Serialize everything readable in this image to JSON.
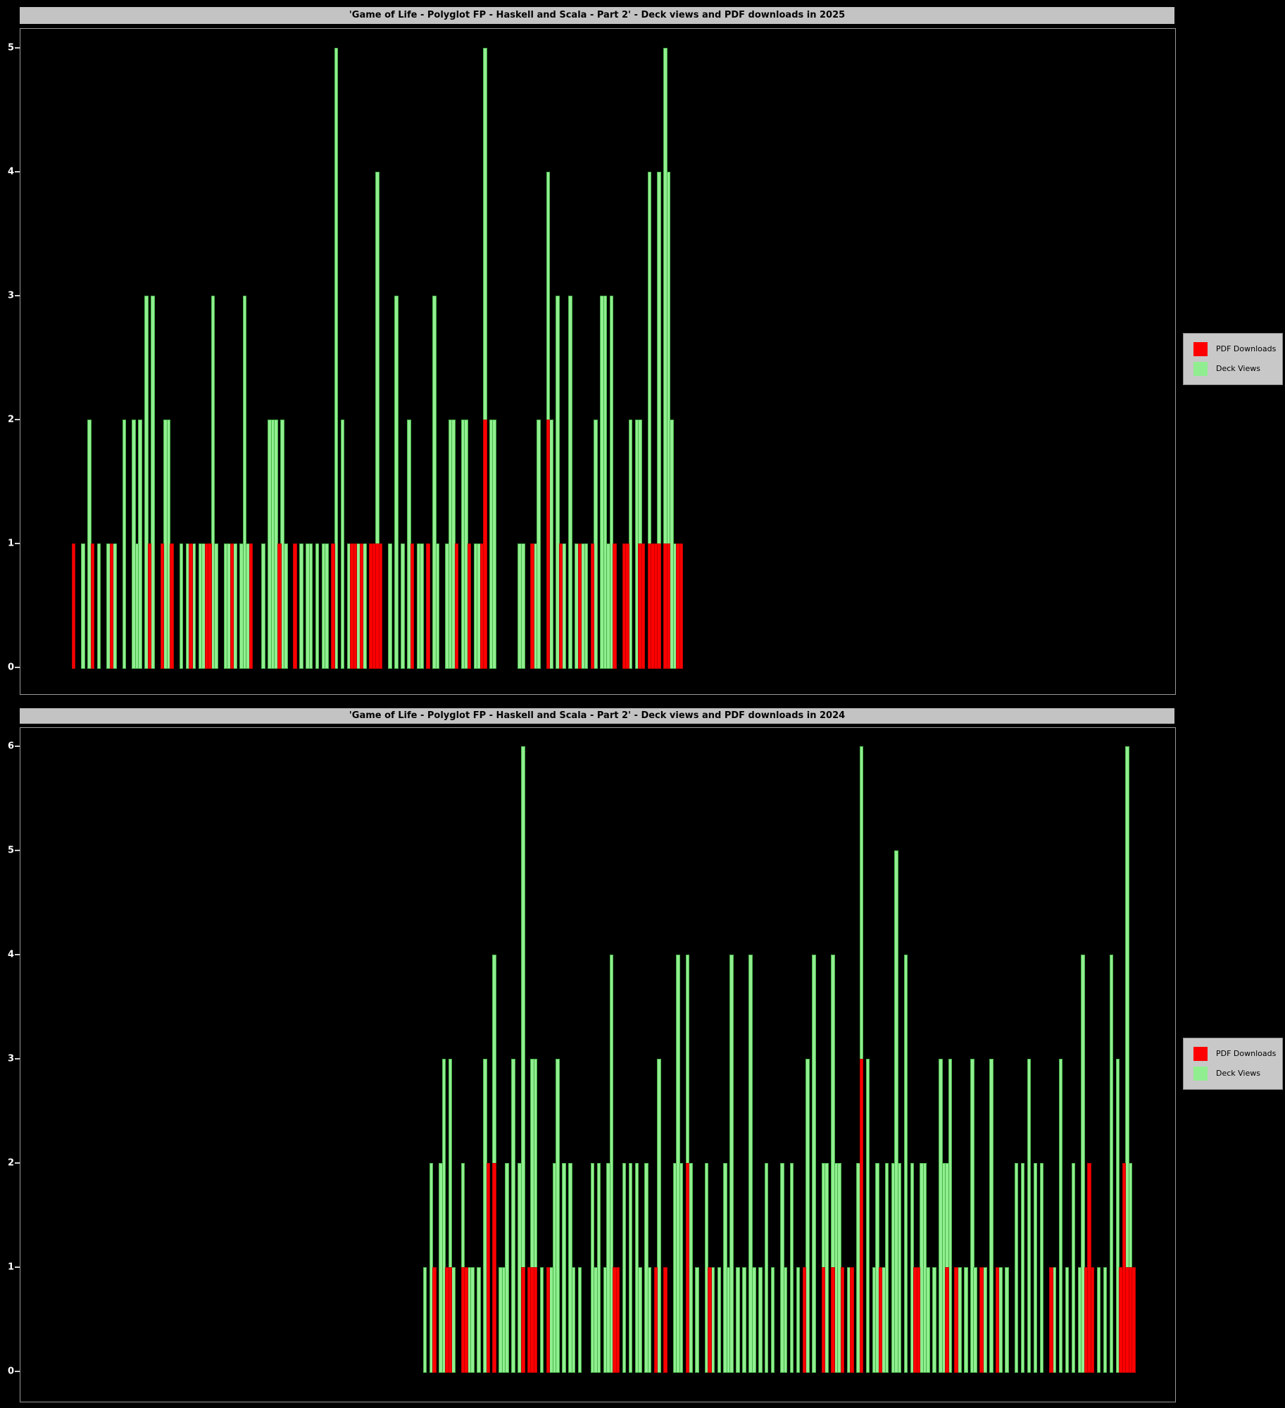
{
  "colors": {
    "background": "#000000",
    "title_bar": "#c3c3c3",
    "title_text": "#000000",
    "tick_text": "#ffffff",
    "axis_frame": "#9a9a9a",
    "pdf_downloads": "#ff0000",
    "deck_views": "#90ee90",
    "legend_bg": "#c8c8c8"
  },
  "chart_data": [
    {
      "type": "bar",
      "title": "'Game of Life - Polyglot FP - Haskell and Scala - Part 2' - Deck views and PDF downloads in 2025",
      "xlabel": "",
      "ylabel": "",
      "ylim": [
        0,
        5
      ],
      "y_ticks": [
        0,
        1,
        2,
        3,
        4,
        5
      ],
      "grid": false,
      "legend_position": "right-outside",
      "legend": [
        {
          "label": "PDF Downloads",
          "color": "#ff0000"
        },
        {
          "label": "Deck Views",
          "color": "#90ee90"
        }
      ],
      "x_unit": "day of year (Jan 1 = 0, full year shown, no x tick labels)",
      "bars_format": [
        "day_of_year",
        "deck_views",
        "pdf_downloads"
      ],
      "bars": [
        [
          16,
          0,
          1
        ],
        [
          19,
          1,
          0
        ],
        [
          21,
          2,
          0
        ],
        [
          22,
          0,
          1
        ],
        [
          24,
          1,
          0
        ],
        [
          27,
          1,
          0
        ],
        [
          28,
          0,
          1
        ],
        [
          29,
          1,
          0
        ],
        [
          32,
          2,
          0
        ],
        [
          35,
          2,
          0
        ],
        [
          36,
          1,
          0
        ],
        [
          37,
          2,
          0
        ],
        [
          39,
          3,
          0
        ],
        [
          40,
          1,
          1
        ],
        [
          41,
          3,
          0
        ],
        [
          44,
          1,
          1
        ],
        [
          45,
          2,
          0
        ],
        [
          46,
          2,
          0
        ],
        [
          47,
          0,
          1
        ],
        [
          50,
          1,
          0
        ],
        [
          52,
          1,
          0
        ],
        [
          53,
          0,
          1
        ],
        [
          54,
          1,
          0
        ],
        [
          56,
          1,
          0
        ],
        [
          57,
          1,
          0
        ],
        [
          58,
          0,
          1
        ],
        [
          59,
          0,
          1
        ],
        [
          60,
          3,
          0
        ],
        [
          61,
          1,
          0
        ],
        [
          64,
          1,
          0
        ],
        [
          65,
          1,
          0
        ],
        [
          66,
          0,
          1
        ],
        [
          67,
          1,
          0
        ],
        [
          69,
          1,
          0
        ],
        [
          70,
          3,
          0
        ],
        [
          71,
          1,
          0
        ],
        [
          72,
          0,
          1
        ],
        [
          76,
          1,
          0
        ],
        [
          78,
          2,
          0
        ],
        [
          79,
          2,
          0
        ],
        [
          80,
          2,
          0
        ],
        [
          81,
          0,
          1
        ],
        [
          82,
          2,
          0
        ],
        [
          83,
          1,
          0
        ],
        [
          86,
          0,
          1
        ],
        [
          88,
          1,
          0
        ],
        [
          90,
          1,
          0
        ],
        [
          91,
          1,
          0
        ],
        [
          93,
          1,
          0
        ],
        [
          95,
          1,
          0
        ],
        [
          96,
          1,
          0
        ],
        [
          98,
          1,
          1
        ],
        [
          99,
          5,
          0
        ],
        [
          101,
          2,
          0
        ],
        [
          103,
          1,
          0
        ],
        [
          104,
          0,
          1
        ],
        [
          105,
          0,
          1
        ],
        [
          106,
          1,
          0
        ],
        [
          107,
          0,
          1
        ],
        [
          108,
          1,
          0
        ],
        [
          110,
          0,
          1
        ],
        [
          111,
          0,
          1
        ],
        [
          112,
          4,
          1
        ],
        [
          113,
          0,
          1
        ],
        [
          116,
          1,
          0
        ],
        [
          118,
          3,
          0
        ],
        [
          120,
          1,
          0
        ],
        [
          122,
          2,
          0
        ],
        [
          123,
          0,
          1
        ],
        [
          125,
          1,
          0
        ],
        [
          126,
          1,
          0
        ],
        [
          128,
          1,
          1
        ],
        [
          130,
          3,
          0
        ],
        [
          131,
          1,
          0
        ],
        [
          134,
          1,
          0
        ],
        [
          135,
          2,
          0
        ],
        [
          136,
          2,
          0
        ],
        [
          137,
          0,
          1
        ],
        [
          139,
          2,
          0
        ],
        [
          140,
          2,
          0
        ],
        [
          141,
          1,
          1
        ],
        [
          143,
          1,
          0
        ],
        [
          144,
          1,
          0
        ],
        [
          145,
          1,
          1
        ],
        [
          146,
          5,
          2
        ],
        [
          148,
          2,
          0
        ],
        [
          149,
          2,
          0
        ],
        [
          157,
          1,
          0
        ],
        [
          158,
          1,
          0
        ],
        [
          161,
          0,
          1
        ],
        [
          162,
          1,
          0
        ],
        [
          163,
          2,
          0
        ],
        [
          166,
          4,
          2
        ],
        [
          167,
          2,
          0
        ],
        [
          169,
          3,
          0
        ],
        [
          170,
          0,
          1
        ],
        [
          171,
          1,
          0
        ],
        [
          173,
          3,
          0
        ],
        [
          175,
          1,
          0
        ],
        [
          176,
          0,
          1
        ],
        [
          177,
          1,
          0
        ],
        [
          178,
          1,
          0
        ],
        [
          180,
          0,
          1
        ],
        [
          181,
          2,
          0
        ],
        [
          183,
          3,
          0
        ],
        [
          184,
          3,
          0
        ],
        [
          185,
          1,
          0
        ],
        [
          186,
          3,
          0
        ],
        [
          187,
          0,
          1
        ],
        [
          190,
          0,
          1
        ],
        [
          191,
          0,
          1
        ],
        [
          192,
          2,
          0
        ],
        [
          194,
          2,
          0
        ],
        [
          195,
          2,
          1
        ],
        [
          196,
          0,
          1
        ],
        [
          198,
          4,
          1
        ],
        [
          199,
          0,
          1
        ],
        [
          200,
          1,
          1
        ],
        [
          201,
          4,
          1
        ],
        [
          203,
          5,
          1
        ],
        [
          204,
          4,
          1
        ],
        [
          205,
          2,
          0
        ],
        [
          206,
          1,
          0
        ],
        [
          207,
          0,
          1
        ],
        [
          208,
          0,
          1
        ]
      ]
    },
    {
      "type": "bar",
      "title": "'Game of Life - Polyglot FP - Haskell and Scala - Part 2' - Deck views and PDF downloads in 2024",
      "xlabel": "",
      "ylabel": "",
      "ylim": [
        0,
        6
      ],
      "y_ticks": [
        0,
        1,
        2,
        3,
        4,
        5,
        6
      ],
      "grid": false,
      "legend_position": "right-outside",
      "legend": [
        {
          "label": "PDF Downloads",
          "color": "#ff0000"
        },
        {
          "label": "Deck Views",
          "color": "#90ee90"
        }
      ],
      "x_unit": "day of year (Jan 1 = 0, full year shown, no x tick labels)",
      "bars_format": [
        "day_of_year",
        "deck_views",
        "pdf_downloads"
      ],
      "bars": [
        [
          127,
          1,
          0
        ],
        [
          129,
          2,
          0
        ],
        [
          130,
          0,
          1
        ],
        [
          132,
          2,
          0
        ],
        [
          133,
          3,
          0
        ],
        [
          134,
          0,
          1
        ],
        [
          135,
          3,
          1
        ],
        [
          136,
          1,
          0
        ],
        [
          139,
          2,
          1
        ],
        [
          140,
          0,
          1
        ],
        [
          141,
          1,
          0
        ],
        [
          142,
          1,
          0
        ],
        [
          144,
          1,
          0
        ],
        [
          146,
          3,
          0
        ],
        [
          147,
          2,
          2
        ],
        [
          149,
          4,
          2
        ],
        [
          151,
          1,
          0
        ],
        [
          152,
          1,
          0
        ],
        [
          153,
          2,
          0
        ],
        [
          155,
          3,
          0
        ],
        [
          157,
          2,
          0
        ],
        [
          158,
          6,
          1
        ],
        [
          160,
          0,
          1
        ],
        [
          161,
          3,
          1
        ],
        [
          162,
          3,
          1
        ],
        [
          164,
          1,
          0
        ],
        [
          166,
          0,
          1
        ],
        [
          167,
          1,
          0
        ],
        [
          168,
          2,
          0
        ],
        [
          169,
          3,
          0
        ],
        [
          171,
          2,
          0
        ],
        [
          173,
          2,
          0
        ],
        [
          174,
          1,
          0
        ],
        [
          176,
          1,
          0
        ],
        [
          180,
          2,
          0
        ],
        [
          181,
          1,
          0
        ],
        [
          182,
          2,
          0
        ],
        [
          184,
          1,
          0
        ],
        [
          185,
          2,
          0
        ],
        [
          186,
          4,
          0
        ],
        [
          187,
          0,
          1
        ],
        [
          188,
          1,
          1
        ],
        [
          190,
          2,
          0
        ],
        [
          192,
          2,
          0
        ],
        [
          194,
          2,
          0
        ],
        [
          195,
          1,
          0
        ],
        [
          197,
          2,
          0
        ],
        [
          198,
          1,
          0
        ],
        [
          200,
          1,
          1
        ],
        [
          201,
          3,
          0
        ],
        [
          203,
          0,
          1
        ],
        [
          206,
          2,
          0
        ],
        [
          207,
          4,
          0
        ],
        [
          208,
          2,
          0
        ],
        [
          210,
          4,
          2
        ],
        [
          211,
          2,
          0
        ],
        [
          213,
          1,
          0
        ],
        [
          216,
          2,
          0
        ],
        [
          217,
          0,
          1
        ],
        [
          218,
          1,
          0
        ],
        [
          220,
          1,
          0
        ],
        [
          222,
          2,
          0
        ],
        [
          223,
          1,
          0
        ],
        [
          224,
          4,
          0
        ],
        [
          226,
          1,
          0
        ],
        [
          228,
          1,
          0
        ],
        [
          230,
          4,
          0
        ],
        [
          231,
          1,
          0
        ],
        [
          233,
          1,
          0
        ],
        [
          235,
          2,
          0
        ],
        [
          237,
          1,
          0
        ],
        [
          240,
          2,
          0
        ],
        [
          241,
          1,
          0
        ],
        [
          243,
          2,
          0
        ],
        [
          245,
          1,
          0
        ],
        [
          247,
          0,
          1
        ],
        [
          248,
          3,
          0
        ],
        [
          250,
          4,
          0
        ],
        [
          253,
          2,
          1
        ],
        [
          254,
          2,
          0
        ],
        [
          256,
          4,
          1
        ],
        [
          257,
          2,
          0
        ],
        [
          258,
          2,
          0
        ],
        [
          259,
          1,
          1
        ],
        [
          261,
          1,
          0
        ],
        [
          262,
          0,
          1
        ],
        [
          264,
          2,
          0
        ],
        [
          265,
          6,
          3
        ],
        [
          267,
          3,
          0
        ],
        [
          269,
          1,
          0
        ],
        [
          270,
          2,
          0
        ],
        [
          271,
          0,
          1
        ],
        [
          272,
          1,
          0
        ],
        [
          273,
          2,
          0
        ],
        [
          275,
          2,
          0
        ],
        [
          276,
          5,
          0
        ],
        [
          277,
          2,
          0
        ],
        [
          279,
          4,
          0
        ],
        [
          281,
          2,
          0
        ],
        [
          282,
          0,
          1
        ],
        [
          283,
          1,
          1
        ],
        [
          284,
          2,
          0
        ],
        [
          285,
          2,
          0
        ],
        [
          286,
          1,
          0
        ],
        [
          288,
          1,
          0
        ],
        [
          290,
          3,
          0
        ],
        [
          291,
          2,
          0
        ],
        [
          292,
          2,
          1
        ],
        [
          293,
          3,
          0
        ],
        [
          295,
          0,
          1
        ],
        [
          296,
          1,
          0
        ],
        [
          298,
          1,
          0
        ],
        [
          300,
          3,
          0
        ],
        [
          301,
          1,
          0
        ],
        [
          303,
          0,
          1
        ],
        [
          304,
          1,
          0
        ],
        [
          306,
          3,
          0
        ],
        [
          308,
          0,
          1
        ],
        [
          309,
          1,
          0
        ],
        [
          311,
          1,
          0
        ],
        [
          314,
          2,
          0
        ],
        [
          316,
          2,
          0
        ],
        [
          318,
          3,
          0
        ],
        [
          320,
          2,
          0
        ],
        [
          322,
          2,
          0
        ],
        [
          325,
          0,
          1
        ],
        [
          326,
          1,
          0
        ],
        [
          328,
          3,
          0
        ],
        [
          330,
          1,
          0
        ],
        [
          332,
          2,
          0
        ],
        [
          334,
          1,
          0
        ],
        [
          335,
          4,
          0
        ],
        [
          336,
          0,
          1
        ],
        [
          337,
          0,
          2
        ],
        [
          338,
          0,
          1
        ],
        [
          340,
          1,
          0
        ],
        [
          342,
          1,
          0
        ],
        [
          344,
          4,
          0
        ],
        [
          346,
          3,
          0
        ],
        [
          347,
          0,
          1
        ],
        [
          348,
          1,
          2
        ],
        [
          349,
          6,
          1
        ],
        [
          350,
          2,
          1
        ],
        [
          351,
          1,
          1
        ]
      ]
    }
  ]
}
